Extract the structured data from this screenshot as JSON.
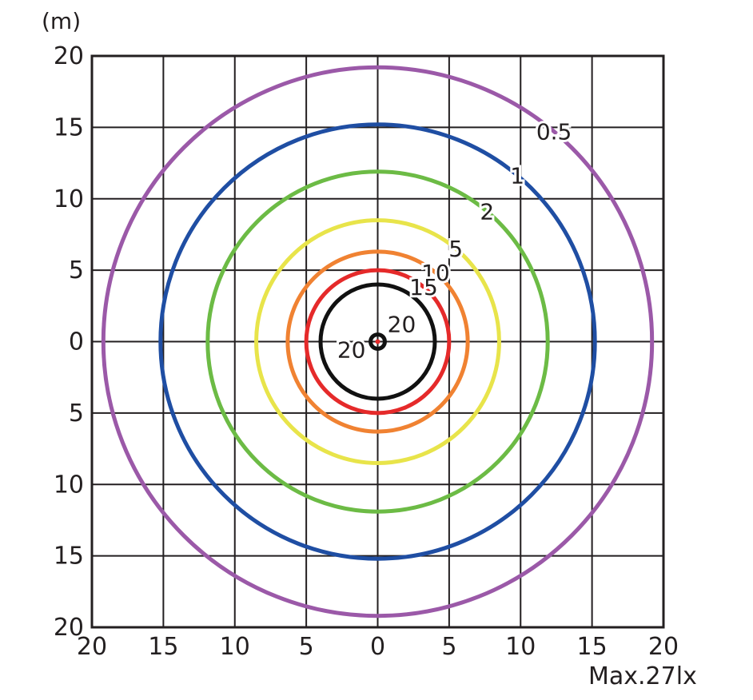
{
  "chart_data": {
    "type": "contour",
    "title": "",
    "unit_label": "(m)",
    "max_label": "Max.27lx",
    "xlim": [
      -20,
      20
    ],
    "ylim": [
      -20,
      20
    ],
    "grid": true,
    "x_ticks": [
      {
        "value": -20,
        "label": "20"
      },
      {
        "value": -15,
        "label": "15"
      },
      {
        "value": -10,
        "label": "10"
      },
      {
        "value": -5,
        "label": "5"
      },
      {
        "value": 0,
        "label": "0"
      },
      {
        "value": 5,
        "label": "5"
      },
      {
        "value": 10,
        "label": "10"
      },
      {
        "value": 15,
        "label": "15"
      },
      {
        "value": 20,
        "label": "20"
      }
    ],
    "y_ticks": [
      {
        "value": 20,
        "label": "20"
      },
      {
        "value": 15,
        "label": "15"
      },
      {
        "value": 10,
        "label": "10"
      },
      {
        "value": 5,
        "label": "5"
      },
      {
        "value": 0,
        "label": "0"
      },
      {
        "value": -5,
        "label": "5"
      },
      {
        "value": -10,
        "label": "10"
      },
      {
        "value": -15,
        "label": "15"
      },
      {
        "value": -20,
        "label": "20"
      }
    ],
    "contours": [
      {
        "level": "0.5",
        "radius_m": 19.2,
        "color": "#9b59a8"
      },
      {
        "level": "1",
        "radius_m": 15.2,
        "color": "#1f4ea3"
      },
      {
        "level": "2",
        "radius_m": 11.9,
        "color": "#6cbb45"
      },
      {
        "level": "5",
        "radius_m": 8.5,
        "color": "#e8e44a"
      },
      {
        "level": "10",
        "radius_m": 6.3,
        "color": "#f08232"
      },
      {
        "level": "15",
        "radius_m": 5.0,
        "color": "#e52a2a"
      },
      {
        "level": "20",
        "radius_m": 4.0,
        "color": "#111111"
      },
      {
        "level": "20",
        "radius_m": 0.5,
        "color": "#111111"
      }
    ]
  }
}
